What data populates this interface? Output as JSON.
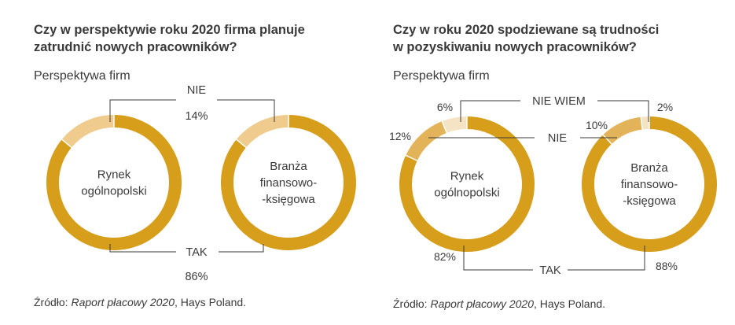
{
  "colors": {
    "tak": "#D69E1B",
    "nie": "#EFCB8D",
    "nie_wiem": "#F4E4C4",
    "nie_right": "#E3B35A",
    "leader": "#3a3a3a"
  },
  "panels": [
    {
      "title_line1": "Czy w perspektywie roku 2020 firma planuje",
      "title_line2": "zatrudnić nowych pracowników?",
      "subtitle": "Perspektywa firm",
      "source_prefix": "Źródło: ",
      "source_italic": "Raport płacowy 2020",
      "source_suffix": ", Hays Poland."
    },
    {
      "title_line1": "Czy w roku 2020 spodziewane są trudności",
      "title_line2": "w pozyskiwaniu nowych pracowników?",
      "subtitle": "Perspektywa firm",
      "source_prefix": "Źródło: ",
      "source_italic": "Raport płacowy 2020",
      "source_suffix": ", Hays Poland."
    }
  ],
  "chart_data": [
    {
      "type": "pie",
      "title": "Czy w perspektywie roku 2020 firma planuje zatrudnić nowych pracowników?",
      "subtitle": "Perspektywa firm",
      "categories": [
        "TAK",
        "NIE"
      ],
      "series": [
        {
          "name": "Rynek ogólnopolski",
          "values": [
            86,
            14
          ]
        },
        {
          "name": "Branża finansowo-księgowa",
          "values": [
            86,
            14
          ]
        }
      ],
      "labels": {
        "tak": "TAK",
        "nie": "NIE",
        "tak_pct": "86%",
        "nie_pct": "14%"
      },
      "center_labels": [
        [
          "Rynek",
          "ogólnopolski"
        ],
        [
          "Branża",
          "finansowo-",
          "-księgowa"
        ]
      ]
    },
    {
      "type": "pie",
      "title": "Czy w roku 2020 spodziewane są trudności w pozyskiwaniu nowych pracowników?",
      "subtitle": "Perspektywa firm",
      "categories": [
        "TAK",
        "NIE",
        "NIE WIEM"
      ],
      "series": [
        {
          "name": "Rynek ogólnopolski",
          "values": [
            82,
            12,
            6
          ]
        },
        {
          "name": "Branża finansowo-księgowa",
          "values": [
            88,
            10,
            2
          ]
        }
      ],
      "labels": {
        "tak": "TAK",
        "nie": "NIE",
        "nie_wiem": "NIE WIEM",
        "left_tak_pct": "82%",
        "left_nie_pct": "12%",
        "left_niewiem_pct": "6%",
        "right_tak_pct": "88%",
        "right_nie_pct": "10%",
        "right_niewiem_pct": "2%"
      },
      "center_labels": [
        [
          "Rynek",
          "ogólnopolski"
        ],
        [
          "Branża",
          "finansowo-",
          "-księgowa"
        ]
      ]
    }
  ]
}
